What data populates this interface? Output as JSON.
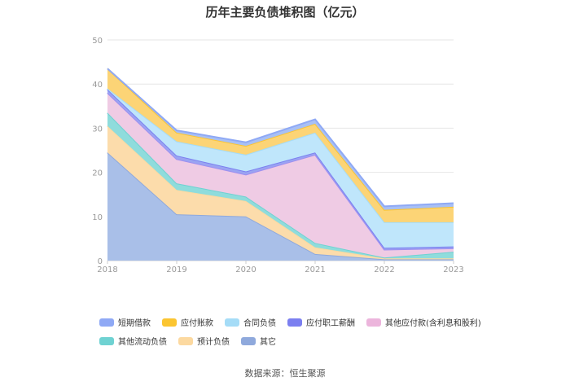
{
  "chart_data": {
    "type": "area",
    "stacked": true,
    "title": "历年主要负债堆积图（亿元）",
    "categories": [
      "2018",
      "2019",
      "2020",
      "2021",
      "2022",
      "2023"
    ],
    "ylim": [
      0,
      50
    ],
    "yticks": [
      "0",
      "10",
      "20",
      "30",
      "40",
      "50"
    ],
    "grid": true,
    "legend_position": "bottom",
    "series": [
      {
        "name": "其它",
        "color": "#a9bfe8",
        "values": [
          24.5,
          10.5,
          10.0,
          1.5,
          0.3,
          0.3
        ]
      },
      {
        "name": "预计负债",
        "color": "#fcdcab",
        "values": [
          6.0,
          5.5,
          3.5,
          1.5,
          0.2,
          0.2
        ]
      },
      {
        "name": "其他流动负债",
        "color": "#8fdcdc",
        "values": [
          3.0,
          1.5,
          1.0,
          1.0,
          0.2,
          1.5
        ]
      },
      {
        "name": "其他应付款(含利息和股利)",
        "color": "#efcbe4",
        "values": [
          4.5,
          5.5,
          5.0,
          20.0,
          1.8,
          0.8
        ]
      },
      {
        "name": "应付职工薪酬",
        "color": "#9aa4f2",
        "values": [
          0.8,
          0.8,
          0.7,
          0.5,
          0.4,
          0.4
        ]
      },
      {
        "name": "合同负债",
        "color": "#bfe6fb",
        "values": [
          0.2,
          3.2,
          3.8,
          4.5,
          5.8,
          5.5
        ]
      },
      {
        "name": "应付账款",
        "color": "#fcd476",
        "values": [
          4.5,
          2.0,
          2.0,
          2.0,
          2.8,
          3.5
        ]
      },
      {
        "name": "短期借款",
        "color": "#a8c0f5",
        "values": [
          0.0,
          0.5,
          0.8,
          1.0,
          0.8,
          0.8
        ]
      }
    ],
    "legend_order": [
      "短期借款",
      "应付账款",
      "合同负债",
      "应付职工薪酬",
      "其他应付款(含利息和股利)",
      "其他流动负债",
      "预计负债",
      "其它"
    ],
    "legend_colors": {
      "短期借款": "#8fa9f5",
      "应付账款": "#fbc531",
      "合同负债": "#a5dcf7",
      "应付职工薪酬": "#7b7ff0",
      "其他应付款(含利息和股利)": "#ecb5dc",
      "其他流动负债": "#6fd2d2",
      "预计负债": "#fcd9a0",
      "其它": "#8fa9dc"
    },
    "line_colors": {
      "其它": "#8fa9dc",
      "预计负债": "#fcd9a0",
      "其他流动负债": "#6fd2d2",
      "其他应付款(含利息和股利)": "#9d8ff0",
      "应付职工薪酬": "#7b7ff0",
      "合同负债": "#a5dcf7",
      "应付账款": "#fbc531",
      "短期借款": "#8fa9f5"
    }
  },
  "source": "数据来源：恒生聚源"
}
